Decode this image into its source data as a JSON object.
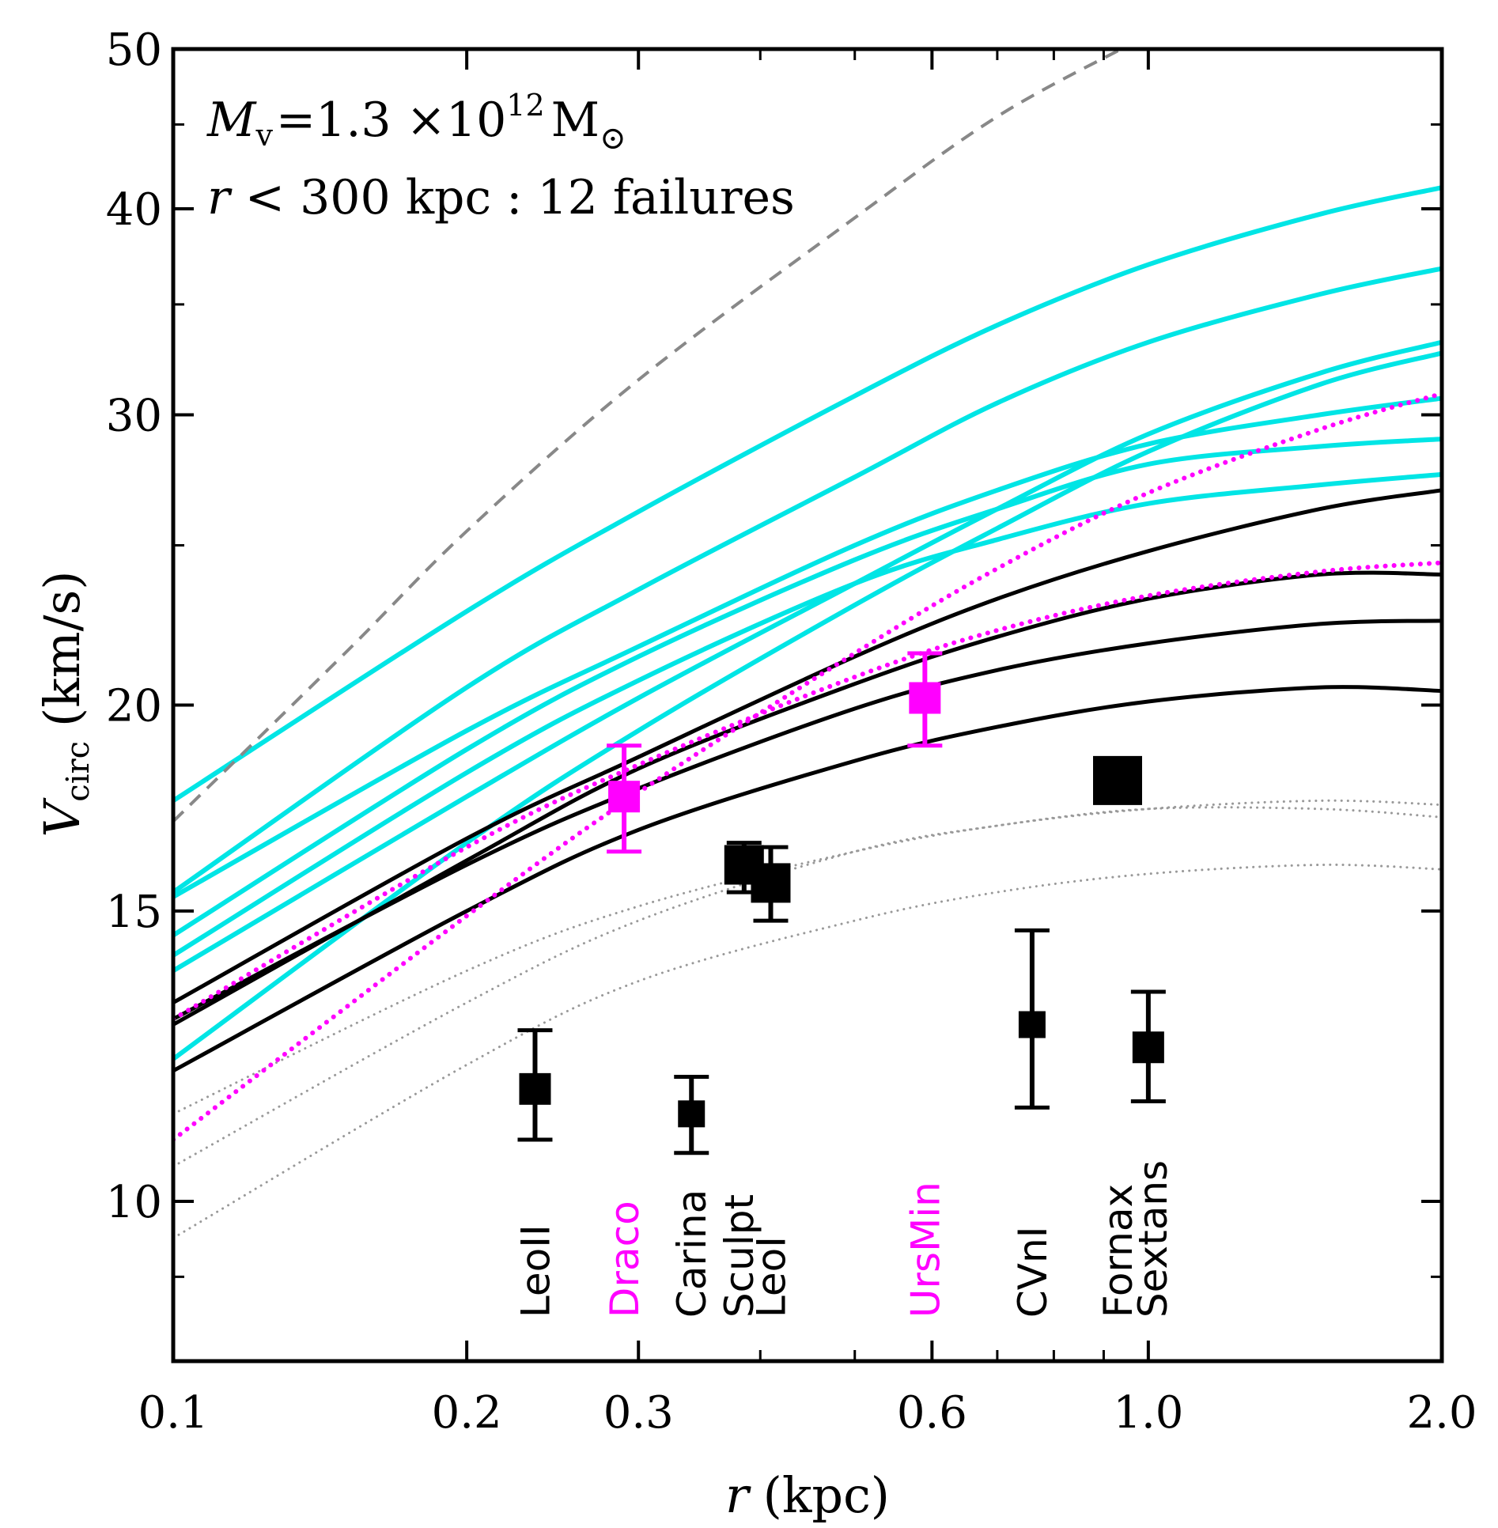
{
  "chart_data": {
    "type": "line",
    "xscale": "log",
    "yscale": "log",
    "xlim": [
      0.1,
      2.0
    ],
    "ylim": [
      8.0,
      50.0
    ],
    "xlabel_main": "r",
    "xlabel_unit": "(kpc)",
    "ylabel_main": "V",
    "ylabel_sub": "circ",
    "ylabel_unit": "(km/s)",
    "x_ticks": [
      {
        "value": 0.1,
        "label": "0.1"
      },
      {
        "value": 0.2,
        "label": "0.2"
      },
      {
        "value": 0.3,
        "label": "0.3"
      },
      {
        "value": 0.6,
        "label": "0.6"
      },
      {
        "value": 1.0,
        "label": "1.0"
      },
      {
        "value": 2.0,
        "label": "2.0"
      }
    ],
    "x_minor_ticks": [
      0.4,
      0.5,
      0.7,
      0.8,
      0.9
    ],
    "y_ticks": [
      {
        "value": 10,
        "label": "10"
      },
      {
        "value": 15,
        "label": "15"
      },
      {
        "value": 20,
        "label": "20"
      },
      {
        "value": 30,
        "label": "30"
      },
      {
        "value": 40,
        "label": "40"
      },
      {
        "value": 50,
        "label": "50"
      }
    ],
    "y_minor_ticks": [
      9,
      25,
      35,
      45
    ],
    "annotations": {
      "mass": {
        "symbol": "M",
        "sub": "v",
        "eq": "=1.3 ×10",
        "sup": "12",
        "unit": "M",
        "unit_sub": "⊙"
      },
      "failures": {
        "symbol": "r",
        "text": " < 300 kpc : 12 failures"
      }
    },
    "colors": {
      "cyan": "#00e5e5",
      "black": "#000000",
      "magenta": "#ff00ff",
      "gray": "#888888",
      "lightgray": "#999999"
    },
    "series": [
      {
        "name": "dashed-reference",
        "style": "dashed",
        "color": "gray",
        "width": 4,
        "points": [
          [
            0.1,
            17.0
          ],
          [
            0.15,
            21.5
          ],
          [
            0.2,
            25.5
          ],
          [
            0.3,
            31.5
          ],
          [
            0.5,
            39.5
          ],
          [
            0.7,
            45.5
          ],
          [
            0.95,
            50.2
          ]
        ]
      },
      {
        "name": "cyan-1",
        "style": "solid",
        "color": "cyan",
        "width": 6,
        "points": [
          [
            0.1,
            17.5
          ],
          [
            0.2,
            22.8
          ],
          [
            0.3,
            26.2
          ],
          [
            0.5,
            30.8
          ],
          [
            0.7,
            34.0
          ],
          [
            1.0,
            37.0
          ],
          [
            1.5,
            39.7
          ],
          [
            2.0,
            41.2
          ]
        ]
      },
      {
        "name": "cyan-2",
        "style": "solid",
        "color": "cyan",
        "width": 6,
        "points": [
          [
            0.1,
            15.4
          ],
          [
            0.2,
            20.5
          ],
          [
            0.3,
            23.5
          ],
          [
            0.5,
            27.5
          ],
          [
            0.7,
            30.5
          ],
          [
            1.0,
            33.2
          ],
          [
            1.5,
            35.5
          ],
          [
            2.0,
            36.8
          ]
        ]
      },
      {
        "name": "cyan-3",
        "style": "solid",
        "color": "cyan",
        "width": 6,
        "points": [
          [
            0.1,
            15.3
          ],
          [
            0.2,
            19.3
          ],
          [
            0.3,
            21.7
          ],
          [
            0.5,
            25.0
          ],
          [
            0.7,
            27.0
          ],
          [
            1.0,
            28.8
          ],
          [
            1.5,
            30.0
          ],
          [
            2.0,
            30.7
          ]
        ]
      },
      {
        "name": "cyan-4",
        "style": "solid",
        "color": "cyan",
        "width": 6,
        "points": [
          [
            0.1,
            14.5
          ],
          [
            0.2,
            18.8
          ],
          [
            0.3,
            21.4
          ],
          [
            0.5,
            24.5
          ],
          [
            0.7,
            26.3
          ],
          [
            1.0,
            28.0
          ],
          [
            1.5,
            28.7
          ],
          [
            2.0,
            29.0
          ]
        ]
      },
      {
        "name": "cyan-5",
        "style": "solid",
        "color": "cyan",
        "width": 6,
        "points": [
          [
            0.1,
            14.1
          ],
          [
            0.2,
            18.2
          ],
          [
            0.3,
            20.7
          ],
          [
            0.5,
            23.7
          ],
          [
            0.7,
            25.2
          ],
          [
            1.0,
            26.5
          ],
          [
            1.5,
            27.2
          ],
          [
            2.0,
            27.6
          ]
        ]
      },
      {
        "name": "cyan-6",
        "style": "solid",
        "color": "cyan",
        "width": 6,
        "points": [
          [
            0.1,
            13.8
          ],
          [
            0.2,
            17.6
          ],
          [
            0.3,
            20.2
          ],
          [
            0.5,
            23.7
          ],
          [
            0.7,
            26.3
          ],
          [
            1.0,
            29.2
          ],
          [
            1.5,
            31.8
          ],
          [
            2.0,
            33.2
          ]
        ]
      },
      {
        "name": "cyan-7",
        "style": "solid",
        "color": "cyan",
        "width": 6,
        "points": [
          [
            0.1,
            12.2
          ],
          [
            0.2,
            16.5
          ],
          [
            0.3,
            19.3
          ],
          [
            0.5,
            23.0
          ],
          [
            0.7,
            25.6
          ],
          [
            1.0,
            28.5
          ],
          [
            1.5,
            31.3
          ],
          [
            2.0,
            32.7
          ]
        ]
      },
      {
        "name": "black-1",
        "style": "solid",
        "color": "black",
        "width": 5,
        "points": [
          [
            0.1,
            13.2
          ],
          [
            0.2,
            16.6
          ],
          [
            0.3,
            18.6
          ],
          [
            0.5,
            21.4
          ],
          [
            0.7,
            23.2
          ],
          [
            1.0,
            24.8
          ],
          [
            1.5,
            26.3
          ],
          [
            2.0,
            27.0
          ]
        ]
      },
      {
        "name": "black-2",
        "style": "solid",
        "color": "black",
        "width": 5,
        "points": [
          [
            0.1,
            12.8
          ],
          [
            0.2,
            16.1
          ],
          [
            0.3,
            18.3
          ],
          [
            0.5,
            20.6
          ],
          [
            0.7,
            22.0
          ],
          [
            1.0,
            23.2
          ],
          [
            1.5,
            24.0
          ],
          [
            2.0,
            24.0
          ]
        ]
      },
      {
        "name": "black-3",
        "style": "solid",
        "color": "black",
        "width": 5,
        "points": [
          [
            0.1,
            12.9
          ],
          [
            0.2,
            16.0
          ],
          [
            0.3,
            17.8
          ],
          [
            0.5,
            19.9
          ],
          [
            0.7,
            21.0
          ],
          [
            1.0,
            21.8
          ],
          [
            1.5,
            22.4
          ],
          [
            2.0,
            22.5
          ]
        ]
      },
      {
        "name": "black-4",
        "style": "solid",
        "color": "black",
        "width": 5,
        "points": [
          [
            0.1,
            12.0
          ],
          [
            0.2,
            15.0
          ],
          [
            0.3,
            16.8
          ],
          [
            0.5,
            18.5
          ],
          [
            0.7,
            19.4
          ],
          [
            1.0,
            20.1
          ],
          [
            1.5,
            20.5
          ],
          [
            2.0,
            20.4
          ]
        ]
      },
      {
        "name": "magenta-dotted-1",
        "style": "dotted",
        "color": "magenta",
        "width": 6,
        "points": [
          [
            0.1,
            10.9
          ],
          [
            0.2,
            14.9
          ],
          [
            0.3,
            17.7
          ],
          [
            0.5,
            21.5
          ],
          [
            0.7,
            24.2
          ],
          [
            1.0,
            26.9
          ],
          [
            1.5,
            29.4
          ],
          [
            2.0,
            30.9
          ]
        ]
      },
      {
        "name": "magenta-dotted-2",
        "style": "dotted",
        "color": "magenta",
        "width": 6,
        "points": [
          [
            0.1,
            12.9
          ],
          [
            0.2,
            16.4
          ],
          [
            0.3,
            18.4
          ],
          [
            0.5,
            20.8
          ],
          [
            0.7,
            22.2
          ],
          [
            1.0,
            23.3
          ],
          [
            1.5,
            24.1
          ],
          [
            2.0,
            24.4
          ]
        ]
      },
      {
        "name": "gray-dotted-1",
        "style": "dotted",
        "color": "lightgray",
        "width": 3,
        "points": [
          [
            0.1,
            11.3
          ],
          [
            0.2,
            13.8
          ],
          [
            0.3,
            15.1
          ],
          [
            0.5,
            16.3
          ],
          [
            0.7,
            16.9
          ],
          [
            1.0,
            17.3
          ],
          [
            1.5,
            17.5
          ],
          [
            2.0,
            17.4
          ]
        ]
      },
      {
        "name": "gray-dotted-2",
        "style": "dotted",
        "color": "lightgray",
        "width": 3,
        "points": [
          [
            0.1,
            10.5
          ],
          [
            0.2,
            13.2
          ],
          [
            0.3,
            14.8
          ],
          [
            0.5,
            16.3
          ],
          [
            0.7,
            16.9
          ],
          [
            1.0,
            17.3
          ],
          [
            1.5,
            17.3
          ],
          [
            2.0,
            17.1
          ]
        ]
      },
      {
        "name": "gray-dotted-3",
        "style": "dotted",
        "color": "lightgray",
        "width": 3,
        "points": [
          [
            0.1,
            9.5
          ],
          [
            0.2,
            12.1
          ],
          [
            0.3,
            13.6
          ],
          [
            0.5,
            14.8
          ],
          [
            0.7,
            15.4
          ],
          [
            1.0,
            15.8
          ],
          [
            1.5,
            16.0
          ],
          [
            2.0,
            15.9
          ]
        ]
      }
    ],
    "points": [
      {
        "name": "LeoII",
        "r": 0.235,
        "v": 11.7,
        "err_low": 10.9,
        "err_high": 12.7,
        "color": "black",
        "size": "medium",
        "label": "LeoII",
        "label_x": 0.235
      },
      {
        "name": "Draco",
        "r": 0.29,
        "v": 17.6,
        "err_low": 16.3,
        "err_high": 18.9,
        "color": "magenta",
        "size": "medium",
        "label": "Draco",
        "label_x": 0.29
      },
      {
        "name": "Carina",
        "r": 0.34,
        "v": 11.3,
        "err_low": 10.7,
        "err_high": 11.9,
        "color": "black",
        "size": "small",
        "label": "Carina",
        "label_x": 0.34
      },
      {
        "name": "Sculpt",
        "r": 0.385,
        "v": 16.0,
        "err_low": 15.4,
        "err_high": 16.5,
        "color": "black",
        "size": "large",
        "label": "Sculpt",
        "label_x": 0.38
      },
      {
        "name": "LeoI",
        "r": 0.41,
        "v": 15.6,
        "err_low": 14.8,
        "err_high": 16.4,
        "color": "black",
        "size": "large",
        "label": "LeoI",
        "label_x": 0.41
      },
      {
        "name": "UrsMin",
        "r": 0.59,
        "v": 20.2,
        "err_low": 18.9,
        "err_high": 21.5,
        "color": "magenta",
        "size": "medium",
        "label": "UrsMin",
        "label_x": 0.59
      },
      {
        "name": "CVnI",
        "r": 0.76,
        "v": 12.8,
        "err_low": 11.4,
        "err_high": 14.6,
        "color": "black",
        "size": "small",
        "label": "CVnI",
        "label_x": 0.76
      },
      {
        "name": "Fornax",
        "r": 0.93,
        "v": 18.0,
        "err_low": null,
        "err_high": null,
        "color": "black",
        "size": "xlarge",
        "label": "Fornax",
        "label_x": 0.93
      },
      {
        "name": "Sextans",
        "r": 1.0,
        "v": 12.4,
        "err_low": 11.5,
        "err_high": 13.4,
        "color": "black",
        "size": "medium",
        "label": "Sextans",
        "label_x": 1.01
      }
    ]
  }
}
